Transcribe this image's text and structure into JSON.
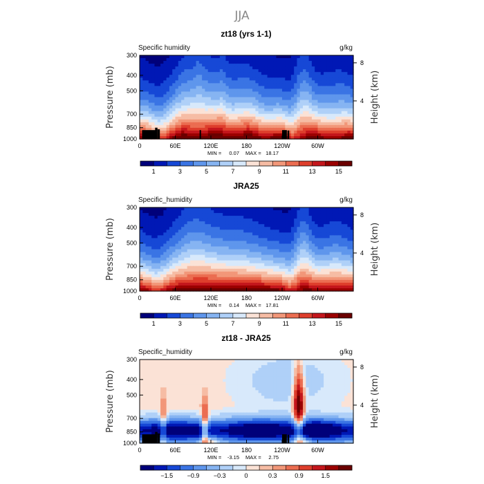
{
  "figure_title": "JJA",
  "colors": [
    "#00007a",
    "#0018b5",
    "#1648d6",
    "#3a74e4",
    "#5f96ec",
    "#86b4f2",
    "#afd0f8",
    "#d8e9fb",
    "#fbe2d6",
    "#f6bca4",
    "#f29779",
    "#eb6d51",
    "#de3e2c",
    "#c4161c",
    "#9b0000",
    "#6b0000"
  ],
  "chart_data": [
    {
      "type": "heatmap",
      "title": "zt18 (yrs 1-1)",
      "field_label": "Specific humidity",
      "units": "g/kg",
      "ylabel": "Pressure (mb)",
      "ylabel_right": "Height (km)",
      "x_ticks": [
        "0",
        "60E",
        "120E",
        "180",
        "120W",
        "60W"
      ],
      "x_tick_values": [
        0,
        60,
        120,
        180,
        240,
        300
      ],
      "xlim": [
        0,
        360
      ],
      "y_ticks": [
        "300",
        "400",
        "500",
        "700",
        "850",
        "1000"
      ],
      "y_tick_values": [
        300,
        400,
        500,
        700,
        850,
        1000
      ],
      "ylim": [
        1000,
        300
      ],
      "right_ticks": [
        "8",
        "4"
      ],
      "right_tick_values": [
        8,
        4
      ],
      "min_label": "MIN =",
      "min_value": "0.07",
      "max_label": "MAX =",
      "max_value": "18.17",
      "colorbar_ticks": [
        "1",
        "3",
        "5",
        "7",
        "9",
        "11",
        "13",
        "15"
      ],
      "colorbar_min": 0,
      "colorbar_max": 16,
      "colorbar_step": 1,
      "field": "abs",
      "variant": "model"
    },
    {
      "type": "heatmap",
      "title": "JRA25",
      "field_label": "Specific_humidity",
      "units": "g/kg",
      "ylabel": "Pressure (mb)",
      "ylabel_right": "Height (km)",
      "x_ticks": [
        "0",
        "60E",
        "120E",
        "180",
        "120W",
        "60W"
      ],
      "x_tick_values": [
        0,
        60,
        120,
        180,
        240,
        300
      ],
      "xlim": [
        0,
        360
      ],
      "y_ticks": [
        "300",
        "400",
        "500",
        "700",
        "850",
        "1000"
      ],
      "y_tick_values": [
        300,
        400,
        500,
        700,
        850,
        1000
      ],
      "ylim": [
        1000,
        300
      ],
      "right_ticks": [
        "8",
        "4"
      ],
      "right_tick_values": [
        8,
        4
      ],
      "min_label": "MIN =",
      "min_value": "0.14",
      "max_label": "MAX =",
      "max_value": "17.81",
      "colorbar_ticks": [
        "1",
        "3",
        "5",
        "7",
        "9",
        "11",
        "13",
        "15"
      ],
      "colorbar_min": 0,
      "colorbar_max": 16,
      "colorbar_step": 1,
      "field": "abs",
      "variant": "obs"
    },
    {
      "type": "heatmap",
      "title": "zt18 - JRA25",
      "field_label": "Specific_humidity",
      "units": "g/kg",
      "ylabel": "Pressure (mb)",
      "ylabel_right": "Height (km)",
      "x_ticks": [
        "0",
        "60E",
        "120E",
        "180",
        "120W",
        "60W"
      ],
      "x_tick_values": [
        0,
        60,
        120,
        180,
        240,
        300
      ],
      "xlim": [
        0,
        360
      ],
      "y_ticks": [
        "300",
        "400",
        "500",
        "700",
        "850",
        "1000"
      ],
      "y_tick_values": [
        300,
        400,
        500,
        700,
        850,
        1000
      ],
      "ylim": [
        1000,
        300
      ],
      "right_ticks": [
        "8",
        "4"
      ],
      "right_tick_values": [
        8,
        4
      ],
      "min_label": "MIN =",
      "min_value": "-3.15",
      "max_label": "MAX =",
      "max_value": "2.75",
      "colorbar_ticks": [
        "−1.5",
        "−0.9",
        "−0.3",
        "0",
        "0.3",
        "0.9",
        "1.5"
      ],
      "colorbar_levels": [
        -2.1,
        -1.8,
        -1.5,
        -1.2,
        -0.9,
        -0.6,
        -0.3,
        -0.1,
        0.1,
        0.3,
        0.6,
        0.9,
        1.2,
        1.5,
        1.8
      ],
      "field": "diff",
      "variant": "diff"
    }
  ]
}
